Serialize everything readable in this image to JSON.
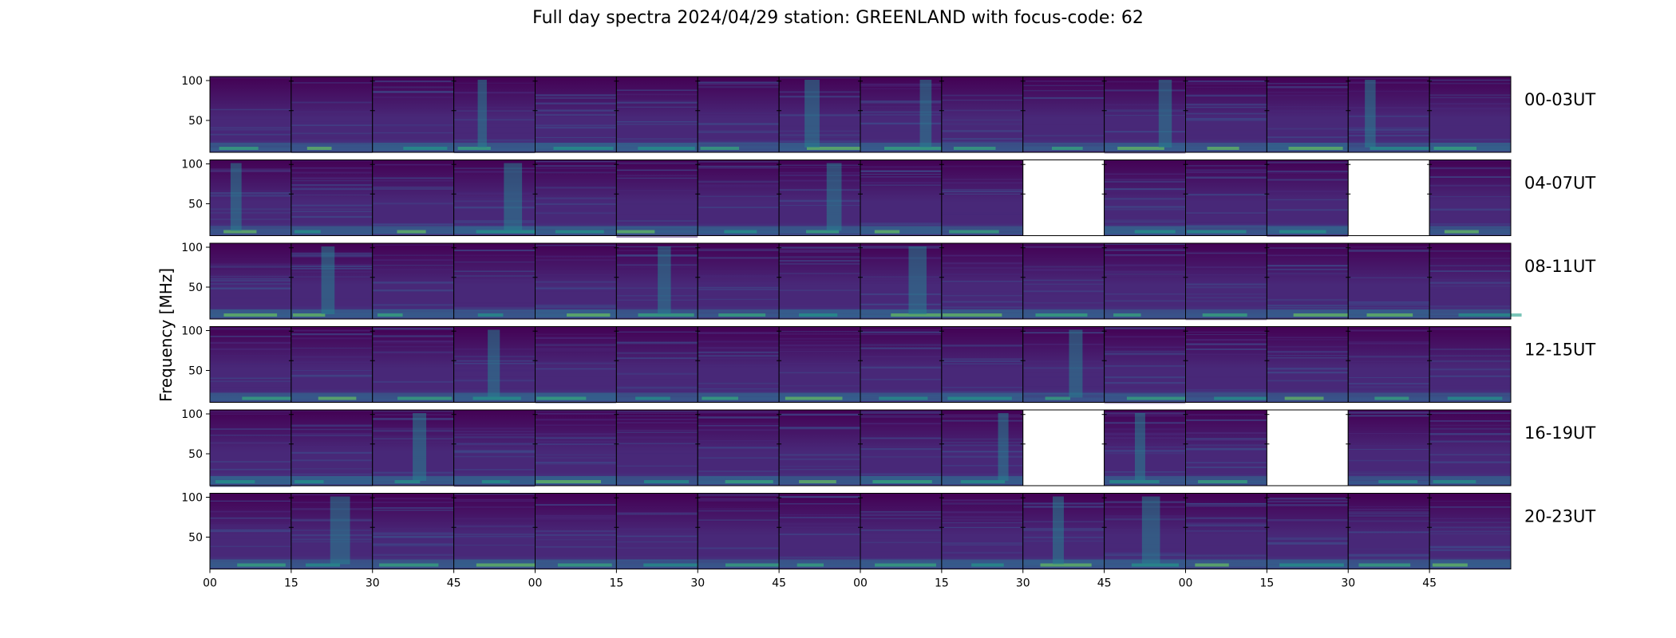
{
  "chart_data": {
    "type": "heatmap",
    "title": "Full day spectra 2024/04/29 station: GREENLAND with focus-code: 62",
    "ylabel": "Frequency [MHz]",
    "yticks": [
      100,
      50
    ],
    "ylim": [
      10,
      105
    ],
    "xticks": [
      "00",
      "15",
      "30",
      "45",
      "00",
      "15",
      "30",
      "45",
      "00",
      "15",
      "30",
      "45",
      "00",
      "15",
      "30",
      "45"
    ],
    "colormap": [
      "#440154",
      "#482878",
      "#3e4989",
      "#31688e",
      "#26828e",
      "#1f9e89",
      "#35b779",
      "#6ece58",
      "#b5de2b"
    ],
    "rows": [
      {
        "label": "00-03UT",
        "missing": [],
        "bursts": [
          3,
          7,
          8,
          11,
          14
        ]
      },
      {
        "label": "04-07UT",
        "missing": [
          10,
          14
        ],
        "bursts": [
          0,
          3,
          7
        ]
      },
      {
        "label": "08-11UT",
        "missing": [],
        "bursts": [
          1,
          5,
          8
        ]
      },
      {
        "label": "12-15UT",
        "missing": [],
        "bursts": [
          3,
          10
        ]
      },
      {
        "label": "16-19UT",
        "missing": [
          10,
          13
        ],
        "bursts": [
          2,
          9,
          11
        ]
      },
      {
        "label": "20-23UT",
        "missing": [],
        "bursts": [
          1,
          10,
          11
        ]
      }
    ]
  }
}
